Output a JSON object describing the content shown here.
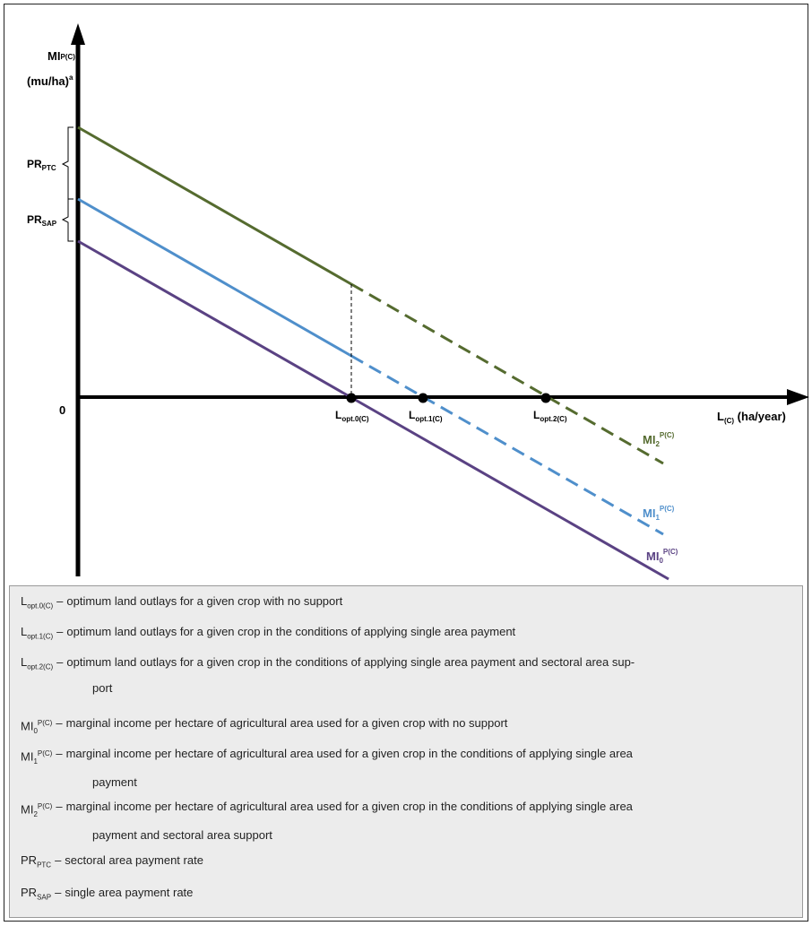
{
  "axes": {
    "y_label_main": "MI",
    "y_label_sup": "P(C)",
    "y_label_unit": "(mu/ha)",
    "y_label_unit_sup": "a",
    "origin": "0",
    "x_label_main": "L",
    "x_label_sub": "(C)",
    "x_label_unit": " (ha/year)"
  },
  "brackets": {
    "ptc": {
      "main": "PR",
      "sub": "PTC"
    },
    "sap": {
      "main": "PR",
      "sub": "SAP"
    }
  },
  "points": [
    {
      "main": "L",
      "sub": "opt.0(C)"
    },
    {
      "main": "L",
      "sub": "opt.1(C)"
    },
    {
      "main": "L",
      "sub": "opt.2(C)"
    }
  ],
  "curves": [
    {
      "main": "MI",
      "sub": "2",
      "sup": "P(C)",
      "color": "#556b2f"
    },
    {
      "main": "MI",
      "sub": "1",
      "sup": "P(C)",
      "color": "#4f8fcb"
    },
    {
      "main": "MI",
      "sub": "0",
      "sup": "P(C)",
      "color": "#5a4283"
    }
  ],
  "legend": [
    {
      "sym_main": "L",
      "sym_sub": "opt.0(C)",
      "sym_sup": "",
      "text": "optimum land outlays for a given crop with no support",
      "text2": ""
    },
    {
      "sym_main": "L",
      "sym_sub": "opt.1(C)",
      "sym_sup": "",
      "text": "optimum land outlays for a given crop in the conditions of applying single area payment",
      "text2": ""
    },
    {
      "sym_main": "L",
      "sym_sub": "opt.2(C)",
      "sym_sup": "",
      "text": "optimum land outlays for a given crop in the conditions of applying single area payment and sectoral area sup-",
      "text2": "port"
    },
    {
      "sym_main": "MI",
      "sym_sub": "0",
      "sym_sup": "P(C)",
      "text": "marginal income per hectare of agricultural area used for a given crop with no support",
      "text2": ""
    },
    {
      "sym_main": "MI",
      "sym_sub": "1",
      "sym_sup": "P(C)",
      "text": "marginal income per hectare of agricultural area used for a given crop in the conditions of applying single area",
      "text2": "payment"
    },
    {
      "sym_main": "MI",
      "sym_sub": "2",
      "sym_sup": "P(C)",
      "text": "marginal income per hectare of agricultural area used for a given crop in the conditions of applying single area",
      "text2": "payment and sectoral area support"
    },
    {
      "sym_main": "PR",
      "sym_sub": "PTC",
      "sym_sup": "",
      "text": "sectoral area payment rate",
      "text2": ""
    },
    {
      "sym_main": "PR",
      "sym_sub": "SAP",
      "sym_sup": "",
      "text": "single area payment rate",
      "text2": ""
    }
  ],
  "dash": "–"
}
